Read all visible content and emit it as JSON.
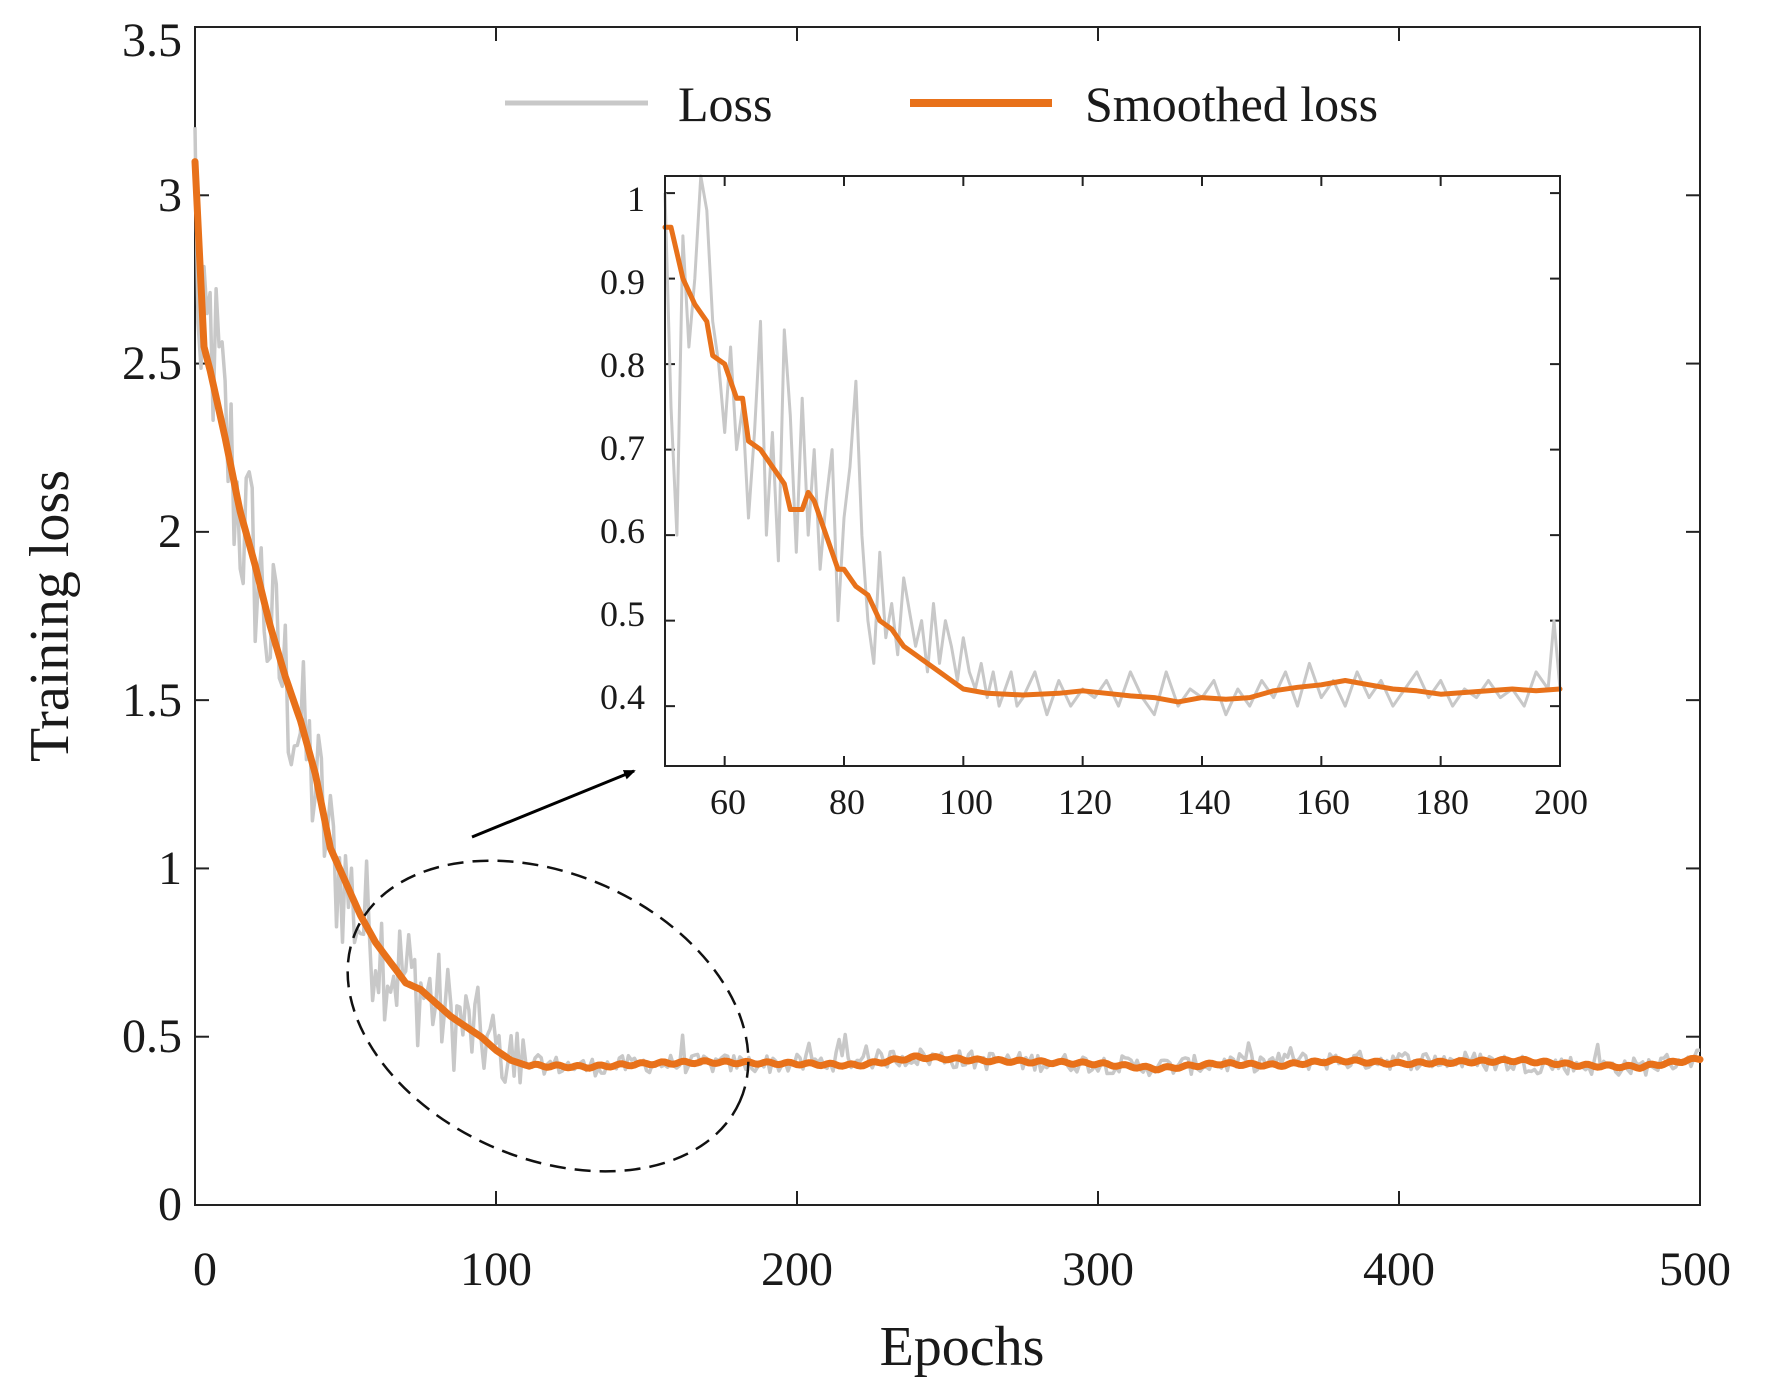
{
  "chart_data": {
    "type": "line",
    "xlabel": "Epochs",
    "ylabel": "Training loss",
    "xlim": [
      0,
      500
    ],
    "ylim": [
      0,
      3.5
    ],
    "xticks": [
      "0",
      "100",
      "200",
      "300",
      "400",
      "500"
    ],
    "yticks": [
      "0",
      "0.5",
      "1",
      "1.5",
      "2",
      "2.5",
      "3",
      "3.5"
    ],
    "legend": {
      "placement": "top",
      "entries": [
        "Loss",
        "Smoothed loss"
      ]
    },
    "colors": {
      "loss": "#c8c8c8",
      "smoothed": "#e8711a"
    },
    "series": [
      {
        "name": "Loss",
        "keypoints": [
          [
            0,
            3.1
          ],
          [
            2,
            2.4
          ],
          [
            5,
            2.6
          ],
          [
            10,
            2.3
          ],
          [
            15,
            2.05
          ],
          [
            20,
            1.9
          ],
          [
            25,
            1.7
          ],
          [
            30,
            1.55
          ],
          [
            35,
            1.4
          ],
          [
            40,
            1.25
          ],
          [
            45,
            1.05
          ],
          [
            50,
            0.95
          ],
          [
            55,
            0.85
          ],
          [
            60,
            0.8
          ],
          [
            65,
            0.72
          ],
          [
            70,
            0.68
          ],
          [
            75,
            0.64
          ],
          [
            80,
            0.6
          ],
          [
            85,
            0.56
          ],
          [
            90,
            0.53
          ],
          [
            95,
            0.5
          ],
          [
            100,
            0.46
          ],
          [
            105,
            0.43
          ],
          [
            110,
            0.42
          ],
          [
            130,
            0.41
          ],
          [
            150,
            0.42
          ],
          [
            170,
            0.42
          ],
          [
            200,
            0.42
          ],
          [
            240,
            0.44
          ],
          [
            260,
            0.43
          ],
          [
            300,
            0.42
          ],
          [
            320,
            0.41
          ],
          [
            340,
            0.42
          ],
          [
            380,
            0.43
          ],
          [
            420,
            0.43
          ],
          [
            440,
            0.42
          ],
          [
            480,
            0.41
          ],
          [
            500,
            0.44
          ]
        ]
      },
      {
        "name": "Smoothed loss",
        "keypoints": [
          [
            0,
            3.1
          ],
          [
            3,
            2.55
          ],
          [
            5,
            2.48
          ],
          [
            10,
            2.28
          ],
          [
            15,
            2.06
          ],
          [
            20,
            1.9
          ],
          [
            25,
            1.72
          ],
          [
            30,
            1.57
          ],
          [
            35,
            1.44
          ],
          [
            40,
            1.28
          ],
          [
            45,
            1.06
          ],
          [
            50,
            0.96
          ],
          [
            55,
            0.86
          ],
          [
            60,
            0.78
          ],
          [
            65,
            0.72
          ],
          [
            70,
            0.66
          ],
          [
            75,
            0.64
          ],
          [
            80,
            0.6
          ],
          [
            85,
            0.56
          ],
          [
            90,
            0.53
          ],
          [
            95,
            0.5
          ],
          [
            100,
            0.46
          ],
          [
            105,
            0.43
          ],
          [
            110,
            0.415
          ],
          [
            130,
            0.41
          ],
          [
            150,
            0.42
          ],
          [
            170,
            0.425
          ],
          [
            200,
            0.42
          ],
          [
            220,
            0.415
          ],
          [
            240,
            0.44
          ],
          [
            260,
            0.43
          ],
          [
            280,
            0.425
          ],
          [
            300,
            0.42
          ],
          [
            320,
            0.405
          ],
          [
            340,
            0.42
          ],
          [
            360,
            0.415
          ],
          [
            380,
            0.43
          ],
          [
            400,
            0.42
          ],
          [
            420,
            0.425
          ],
          [
            440,
            0.43
          ],
          [
            460,
            0.415
          ],
          [
            480,
            0.41
          ],
          [
            500,
            0.435
          ]
        ]
      }
    ],
    "inset": {
      "xlim": [
        50,
        200
      ],
      "ylim": [
        0.33,
        1.02
      ],
      "xticks": [
        "60",
        "80",
        "100",
        "120",
        "140",
        "160",
        "180",
        "200"
      ],
      "yticks": [
        "0.4",
        "0.5",
        "0.6",
        "0.7",
        "0.8",
        "0.9",
        "1"
      ],
      "loss_points": [
        [
          50,
          1.0
        ],
        [
          51,
          0.75
        ],
        [
          52,
          0.6
        ],
        [
          53,
          0.95
        ],
        [
          54,
          0.82
        ],
        [
          55,
          0.9
        ],
        [
          56,
          1.02
        ],
        [
          57,
          0.98
        ],
        [
          58,
          0.85
        ],
        [
          59,
          0.8
        ],
        [
          60,
          0.72
        ],
        [
          61,
          0.82
        ],
        [
          62,
          0.7
        ],
        [
          63,
          0.75
        ],
        [
          64,
          0.62
        ],
        [
          65,
          0.72
        ],
        [
          66,
          0.85
        ],
        [
          67,
          0.6
        ],
        [
          68,
          0.72
        ],
        [
          69,
          0.57
        ],
        [
          70,
          0.84
        ],
        [
          71,
          0.74
        ],
        [
          72,
          0.58
        ],
        [
          73,
          0.76
        ],
        [
          74,
          0.6
        ],
        [
          75,
          0.7
        ],
        [
          76,
          0.56
        ],
        [
          77,
          0.64
        ],
        [
          78,
          0.7
        ],
        [
          79,
          0.5
        ],
        [
          80,
          0.62
        ],
        [
          81,
          0.68
        ],
        [
          82,
          0.78
        ],
        [
          83,
          0.6
        ],
        [
          84,
          0.5
        ],
        [
          85,
          0.45
        ],
        [
          86,
          0.58
        ],
        [
          87,
          0.48
        ],
        [
          88,
          0.52
        ],
        [
          89,
          0.46
        ],
        [
          90,
          0.55
        ],
        [
          91,
          0.51
        ],
        [
          92,
          0.47
        ],
        [
          93,
          0.5
        ],
        [
          94,
          0.44
        ],
        [
          95,
          0.52
        ],
        [
          96,
          0.45
        ],
        [
          97,
          0.5
        ],
        [
          98,
          0.47
        ],
        [
          99,
          0.43
        ],
        [
          100,
          0.48
        ],
        [
          101,
          0.44
        ],
        [
          102,
          0.42
        ],
        [
          103,
          0.45
        ],
        [
          104,
          0.41
        ],
        [
          105,
          0.44
        ],
        [
          106,
          0.4
        ],
        [
          107,
          0.42
        ],
        [
          108,
          0.44
        ],
        [
          109,
          0.4
        ],
        [
          110,
          0.41
        ],
        [
          112,
          0.44
        ],
        [
          114,
          0.39
        ],
        [
          116,
          0.43
        ],
        [
          118,
          0.4
        ],
        [
          120,
          0.42
        ],
        [
          122,
          0.41
        ],
        [
          124,
          0.43
        ],
        [
          126,
          0.4
        ],
        [
          128,
          0.44
        ],
        [
          130,
          0.41
        ],
        [
          132,
          0.39
        ],
        [
          134,
          0.44
        ],
        [
          136,
          0.4
        ],
        [
          138,
          0.42
        ],
        [
          140,
          0.41
        ],
        [
          142,
          0.43
        ],
        [
          144,
          0.39
        ],
        [
          146,
          0.42
        ],
        [
          148,
          0.4
        ],
        [
          150,
          0.43
        ],
        [
          152,
          0.41
        ],
        [
          154,
          0.44
        ],
        [
          156,
          0.4
        ],
        [
          158,
          0.45
        ],
        [
          160,
          0.41
        ],
        [
          162,
          0.43
        ],
        [
          164,
          0.4
        ],
        [
          166,
          0.44
        ],
        [
          168,
          0.41
        ],
        [
          170,
          0.43
        ],
        [
          172,
          0.4
        ],
        [
          174,
          0.42
        ],
        [
          176,
          0.44
        ],
        [
          178,
          0.41
        ],
        [
          180,
          0.43
        ],
        [
          182,
          0.4
        ],
        [
          184,
          0.42
        ],
        [
          186,
          0.41
        ],
        [
          188,
          0.43
        ],
        [
          190,
          0.41
        ],
        [
          192,
          0.42
        ],
        [
          194,
          0.4
        ],
        [
          196,
          0.44
        ],
        [
          198,
          0.42
        ],
        [
          199,
          0.5
        ],
        [
          200,
          0.42
        ]
      ],
      "smoothed_points": [
        [
          50,
          0.96
        ],
        [
          51,
          0.96
        ],
        [
          53,
          0.9
        ],
        [
          55,
          0.87
        ],
        [
          57,
          0.85
        ],
        [
          58,
          0.81
        ],
        [
          60,
          0.8
        ],
        [
          62,
          0.76
        ],
        [
          63,
          0.76
        ],
        [
          64,
          0.71
        ],
        [
          66,
          0.7
        ],
        [
          68,
          0.68
        ],
        [
          70,
          0.66
        ],
        [
          71,
          0.63
        ],
        [
          73,
          0.63
        ],
        [
          74,
          0.65
        ],
        [
          75,
          0.64
        ],
        [
          77,
          0.6
        ],
        [
          79,
          0.56
        ],
        [
          80,
          0.56
        ],
        [
          82,
          0.54
        ],
        [
          84,
          0.53
        ],
        [
          86,
          0.5
        ],
        [
          88,
          0.49
        ],
        [
          90,
          0.47
        ],
        [
          92,
          0.46
        ],
        [
          94,
          0.45
        ],
        [
          96,
          0.44
        ],
        [
          98,
          0.43
        ],
        [
          100,
          0.42
        ],
        [
          104,
          0.415
        ],
        [
          110,
          0.413
        ],
        [
          116,
          0.415
        ],
        [
          120,
          0.418
        ],
        [
          124,
          0.415
        ],
        [
          128,
          0.412
        ],
        [
          132,
          0.41
        ],
        [
          136,
          0.405
        ],
        [
          140,
          0.41
        ],
        [
          144,
          0.408
        ],
        [
          148,
          0.41
        ],
        [
          152,
          0.418
        ],
        [
          156,
          0.422
        ],
        [
          160,
          0.425
        ],
        [
          164,
          0.43
        ],
        [
          168,
          0.425
        ],
        [
          172,
          0.42
        ],
        [
          176,
          0.418
        ],
        [
          180,
          0.414
        ],
        [
          184,
          0.416
        ],
        [
          188,
          0.418
        ],
        [
          192,
          0.42
        ],
        [
          196,
          0.418
        ],
        [
          200,
          0.42
        ]
      ]
    },
    "annotations": {
      "ellipse_x_range": [
        35,
        200
      ],
      "ellipse_y_range": [
        0.2,
        1.1
      ]
    }
  }
}
